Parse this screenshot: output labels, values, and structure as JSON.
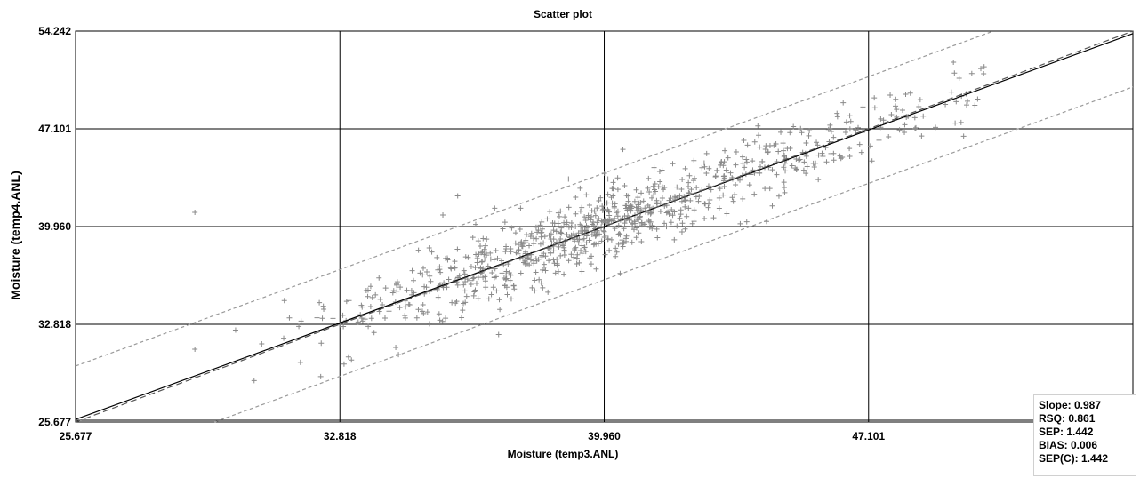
{
  "chart_data": {
    "type": "scatter",
    "title": "Scatter plot",
    "xlabel": "Moisture (temp3.ANL)",
    "ylabel": "Moisture (temp4.ANL)",
    "xlim": [
      25.677,
      54.242
    ],
    "ylim": [
      25.677,
      54.242
    ],
    "x_ticks": [
      "25.677",
      "32.818",
      "39.960",
      "47.101"
    ],
    "y_ticks": [
      "54.242",
      "47.101",
      "39.960",
      "32.818",
      "25.677"
    ],
    "grid": true,
    "point_marker": "plus",
    "point_color": "#8a8a8a",
    "outliers": [
      {
        "x": 28.9,
        "y": 41.0
      },
      {
        "x": 28.9,
        "y": 31.0
      },
      {
        "x": 31.3,
        "y": 31.8
      },
      {
        "x": 32.2,
        "y": 33.3
      },
      {
        "x": 33.5,
        "y": 33.2
      },
      {
        "x": 36.0,
        "y": 42.2
      },
      {
        "x": 35.6,
        "y": 40.8
      },
      {
        "x": 37.0,
        "y": 41.3
      },
      {
        "x": 35.3,
        "y": 38.1
      },
      {
        "x": 30.5,
        "y": 28.7
      },
      {
        "x": 34.4,
        "y": 30.6
      },
      {
        "x": 33.0,
        "y": 34.5
      },
      {
        "x": 32.3,
        "y": 29.0
      },
      {
        "x": 30.0,
        "y": 32.4
      }
    ],
    "fit_line": {
      "slope": 0.987,
      "intercept": 0.525
    },
    "band_offset": 3.9,
    "n_points": 900,
    "stats": {
      "slope": "Slope: 0.987",
      "rsq": "RSQ: 0.861",
      "sep": "SEP: 1.442",
      "bias": "BIAS: 0.006",
      "sepc": "SEP(C): 1.442"
    }
  }
}
